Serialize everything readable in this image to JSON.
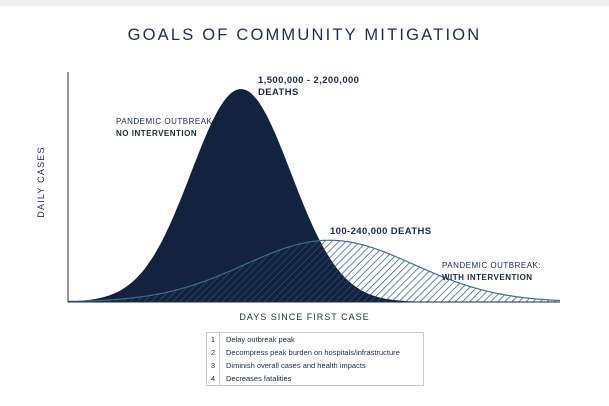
{
  "chart_data": {
    "type": "area",
    "title": "GOALS OF COMMUNITY MITIGATION",
    "xlabel": "DAYS SINCE FIRST CASE",
    "ylabel": "DAILY CASES",
    "grid": false,
    "legend": "none",
    "series": [
      {
        "label_line1": "PANDEMIC OUTBREAK:",
        "label_line2": "NO INTERVENTION",
        "peak_label_line1": "1,500,000 - 2,200,000",
        "peak_label_line2": "DEATHS",
        "peak_day": 45,
        "spread": 13,
        "peak": 100,
        "color": "#12223f",
        "fill": "solid"
      },
      {
        "label_line1": "PANDEMIC OUTBREAK:",
        "label_line2": "WITH INTERVENTION",
        "peak_label": "100-240,000 DEATHS",
        "peak_day": 68,
        "spread": 22,
        "peak": 29,
        "color": "#3e6f93",
        "fill": "hatched"
      }
    ],
    "xlim": [
      0,
      128
    ],
    "ylim": [
      0,
      108
    ]
  },
  "goals": [
    {
      "num": "1",
      "text": "Delay outbreak peak"
    },
    {
      "num": "2",
      "text": "Decompress peak burden on hospitals/infrastructure"
    },
    {
      "num": "3",
      "text": "Diminish overall cases and health impacts"
    },
    {
      "num": "4",
      "text": "Decreases fatalities"
    }
  ],
  "colors": {
    "navy": "#12223f",
    "hatch": "#3e6f93",
    "axis": "#1b2a44"
  }
}
